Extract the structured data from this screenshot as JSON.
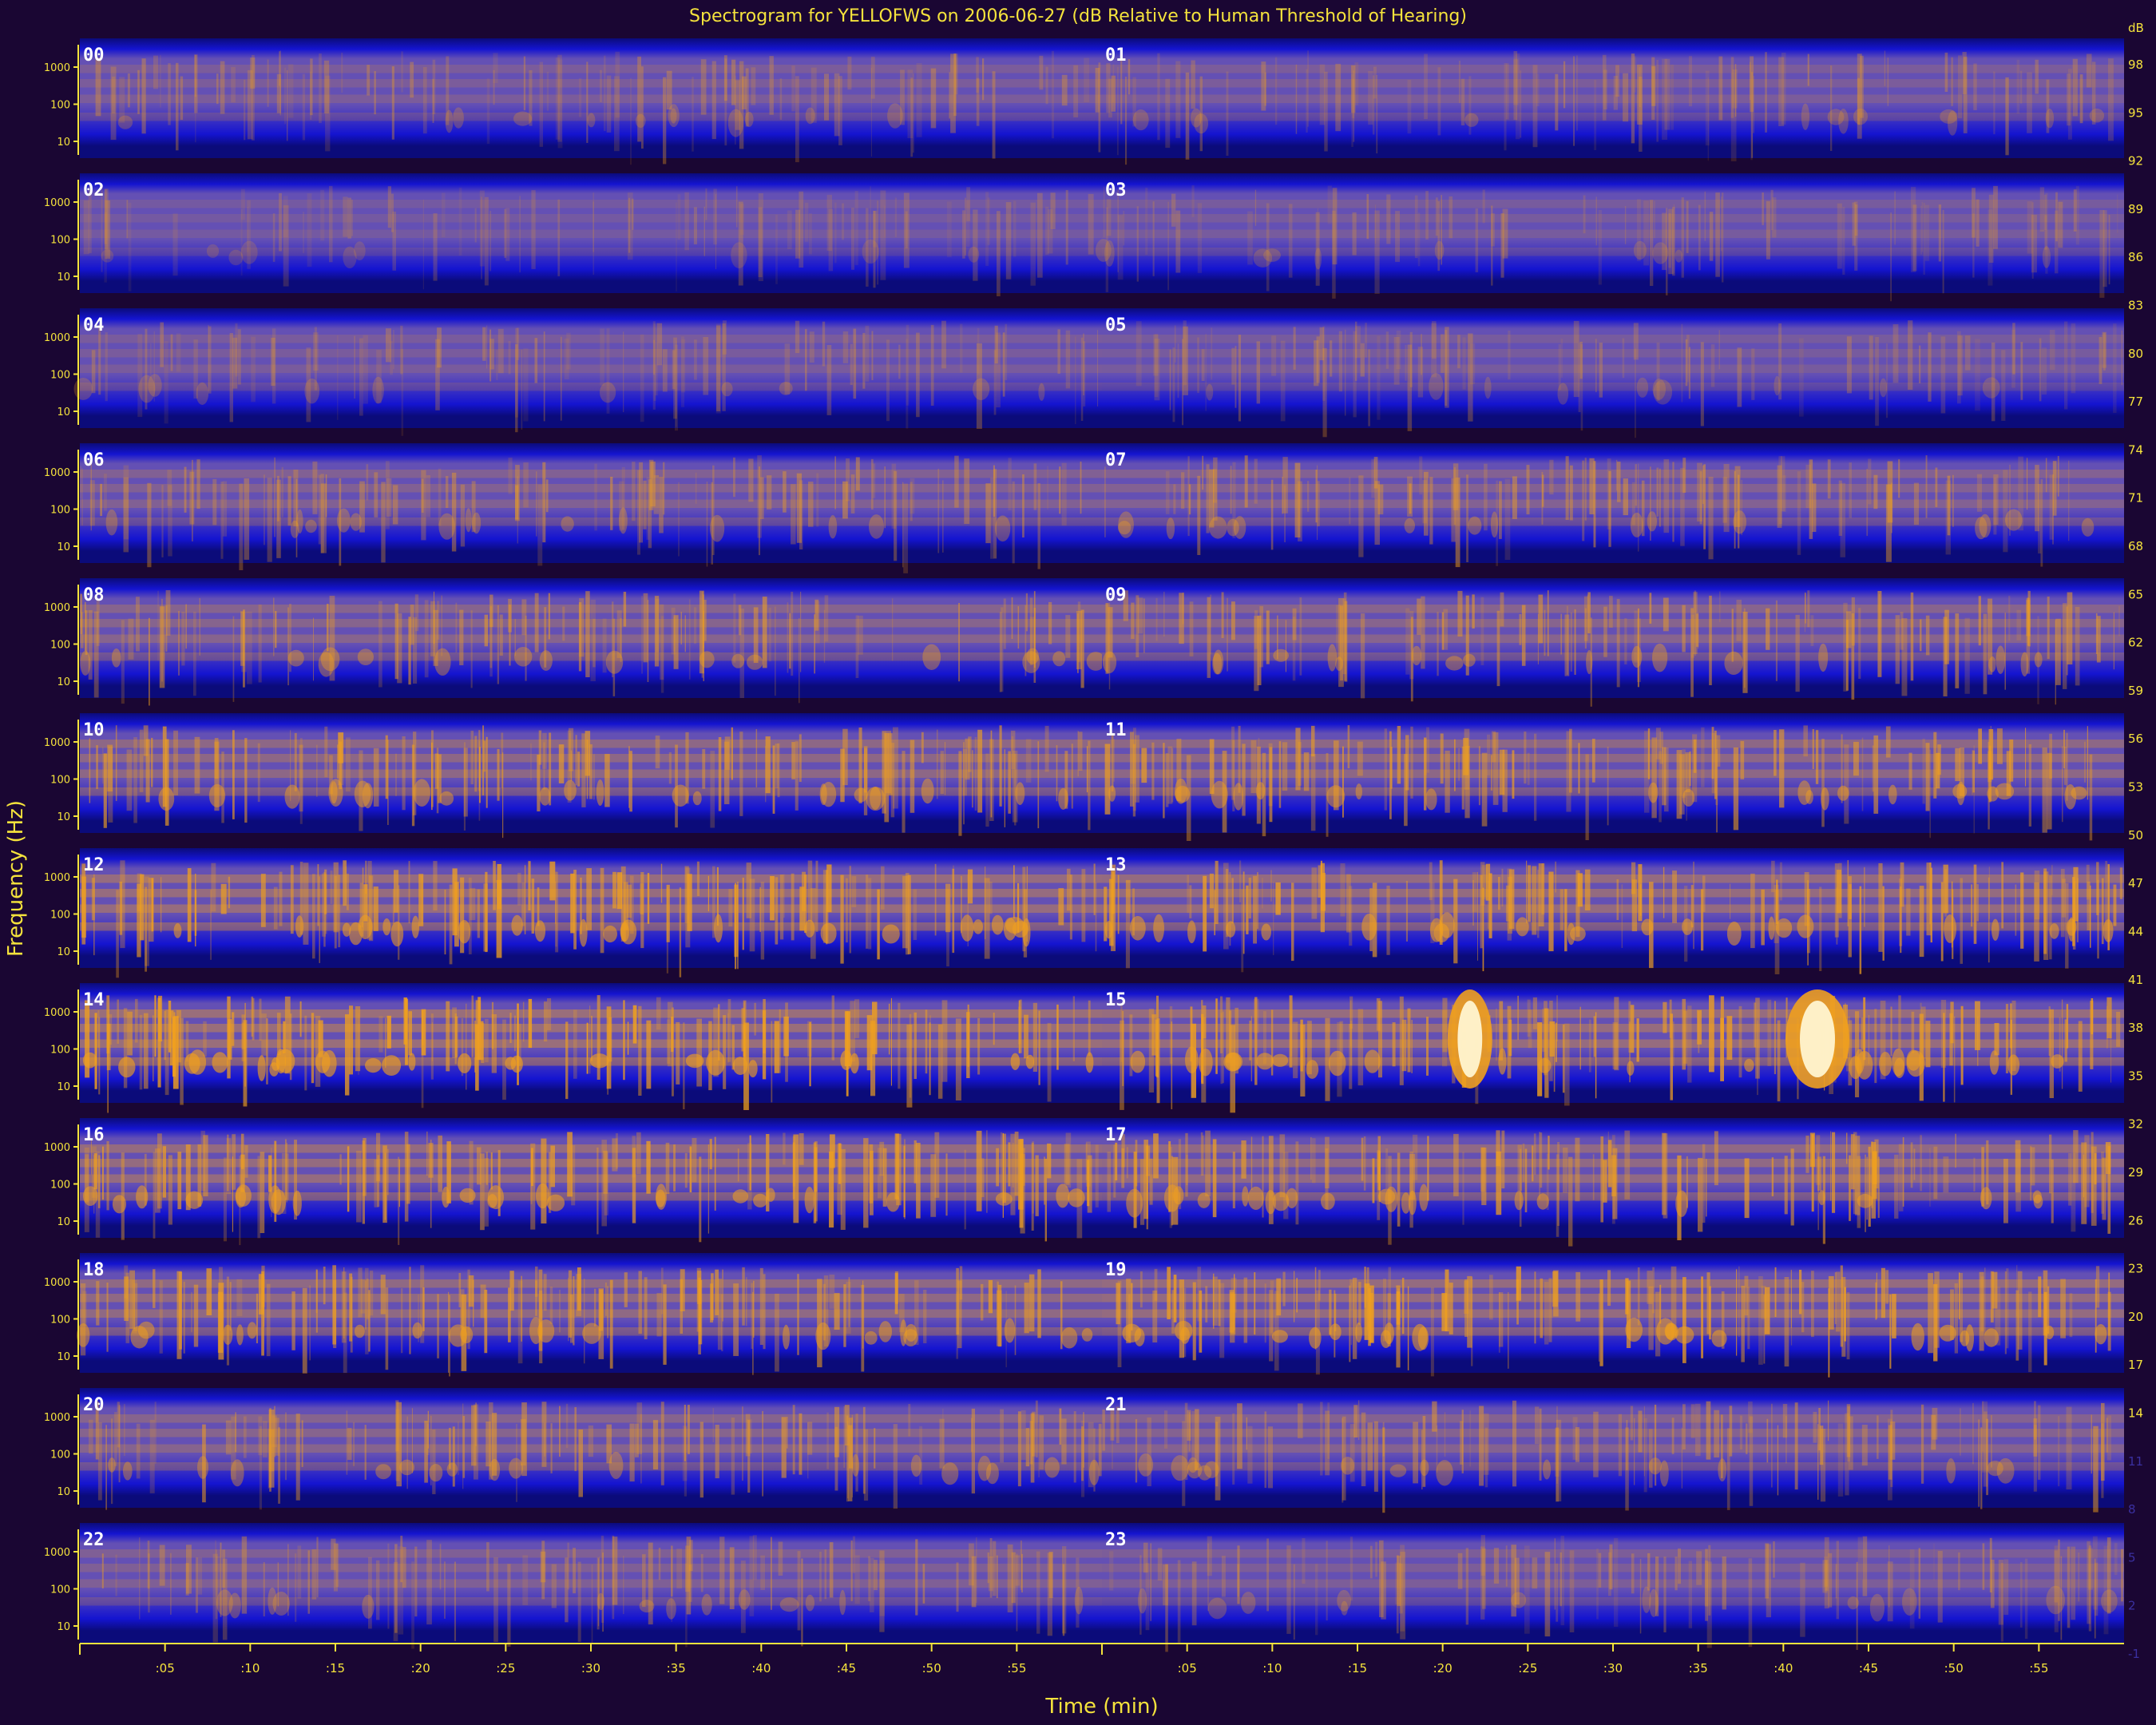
{
  "chart_data": {
    "type": "heatmap",
    "title": "Spectrogram for YELLOFWS on 2006-06-27 (dB Relative to Human Threshold of Hearing)",
    "xlabel": "Time (min)",
    "ylabel": "Frequency (Hz)",
    "y_tick_labels": [
      "1000",
      "100",
      "10"
    ],
    "x_tick_labels": [
      ":05",
      ":10",
      ":15",
      ":20",
      ":25",
      ":30",
      ":35",
      ":40",
      ":45",
      ":50",
      ":55"
    ],
    "colorbar": {
      "label": "dB",
      "ticks": [
        98,
        95,
        92,
        89,
        86,
        83,
        80,
        77,
        74,
        71,
        68,
        65,
        62,
        59,
        56,
        53,
        50,
        47,
        44,
        41,
        38,
        35,
        32,
        29,
        26,
        23,
        20,
        17,
        14,
        11,
        8,
        5,
        2,
        -1
      ]
    },
    "hour_panels": [
      {
        "label": "00",
        "intensity": 0.3
      },
      {
        "label": "01",
        "intensity": 0.3
      },
      {
        "label": "02",
        "intensity": 0.22
      },
      {
        "label": "03",
        "intensity": 0.26
      },
      {
        "label": "04",
        "intensity": 0.28
      },
      {
        "label": "05",
        "intensity": 0.26
      },
      {
        "label": "06",
        "intensity": 0.38
      },
      {
        "label": "07",
        "intensity": 0.4
      },
      {
        "label": "08",
        "intensity": 0.45
      },
      {
        "label": "09",
        "intensity": 0.46
      },
      {
        "label": "10",
        "intensity": 0.55
      },
      {
        "label": "11",
        "intensity": 0.55
      },
      {
        "label": "12",
        "intensity": 0.65
      },
      {
        "label": "13",
        "intensity": 0.62
      },
      {
        "label": "14",
        "intensity": 0.7
      },
      {
        "label": "15",
        "intensity": 0.65
      },
      {
        "label": "16",
        "intensity": 0.62
      },
      {
        "label": "17",
        "intensity": 0.58
      },
      {
        "label": "18",
        "intensity": 0.57
      },
      {
        "label": "19",
        "intensity": 0.63
      },
      {
        "label": "20",
        "intensity": 0.45
      },
      {
        "label": "21",
        "intensity": 0.42
      },
      {
        "label": "22",
        "intensity": 0.36
      },
      {
        "label": "23",
        "intensity": 0.32
      }
    ],
    "colors": {
      "background": "#1a0633",
      "band_dark": "#0b0b7a",
      "band_blue": "#1414d0",
      "mid": "#6450b4",
      "energy": "#f0a01e",
      "peak": "#fff4d0",
      "text": "#f5e33c"
    }
  }
}
